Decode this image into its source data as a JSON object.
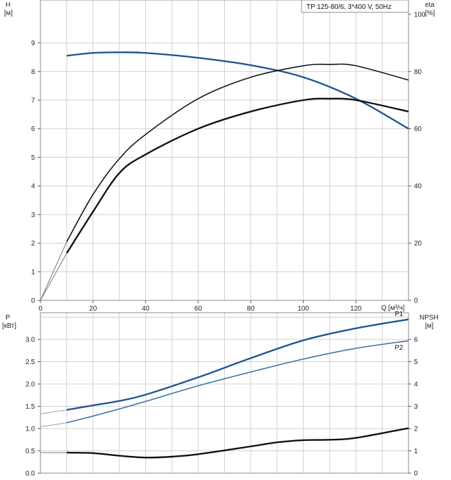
{
  "colors": {
    "blue": "#1f5591",
    "blue_light": "#3b6fa8",
    "black": "#111111",
    "grid": "#d0d0d0"
  },
  "chart_data": [
    {
      "type": "line",
      "title": "TP 125-80/6, 3*400 V, 50Hz",
      "xlabel": "Q [м³/ч]",
      "ylabel": "H [м]",
      "ylabel_top": "H",
      "ylabel_unit": "[м]",
      "y2label_top": "eta",
      "y2label_unit": "[%]",
      "xlim": [
        0,
        140
      ],
      "ylim": [
        0,
        10.5
      ],
      "y2lim": [
        0,
        105
      ],
      "xticks": [
        0,
        20,
        40,
        60,
        80,
        100,
        120
      ],
      "yticks": [
        0,
        1,
        2,
        3,
        4,
        5,
        6,
        7,
        8,
        9
      ],
      "y2ticks": [
        0,
        20,
        40,
        60,
        80,
        100
      ],
      "series": [
        {
          "name": "H",
          "axis": "left",
          "color": "#1f5591",
          "thin_x": [
            0,
            10
          ],
          "x": [
            10,
            20,
            30,
            40,
            60,
            80,
            100,
            120,
            140
          ],
          "y": [
            8.55,
            8.65,
            8.67,
            8.65,
            8.48,
            8.22,
            7.8,
            7.05,
            6.0
          ]
        },
        {
          "name": "eta",
          "axis": "right",
          "color": "#111111",
          "thin_x": [
            0,
            10
          ],
          "x": [
            0,
            10,
            20,
            30,
            40,
            60,
            80,
            100,
            110,
            120,
            140
          ],
          "y": [
            0,
            20.5,
            37,
            49.5,
            58,
            70.5,
            78,
            82,
            82.5,
            82,
            77
          ]
        },
        {
          "name": "eta_hydraulic",
          "axis": "right",
          "color": "#111111",
          "thin_x": [
            0,
            10
          ],
          "x": [
            0,
            10,
            20,
            30,
            40,
            60,
            80,
            100,
            110,
            120,
            140
          ],
          "y": [
            0,
            16.5,
            31,
            44.5,
            51,
            60,
            66,
            70,
            70.5,
            70,
            66
          ]
        }
      ]
    },
    {
      "type": "line",
      "xlabel": "",
      "ylabel": "P [кВт]",
      "ylabel_top": "P",
      "ylabel_unit": "[кВт]",
      "y2label_top": "NPSH",
      "y2label_unit": "[м]",
      "xlim": [
        0,
        140
      ],
      "ylim": [
        0,
        3.6
      ],
      "y2lim": [
        0,
        7.2
      ],
      "yticks": [
        0.0,
        0.5,
        1.0,
        1.5,
        2.0,
        2.5,
        3.0
      ],
      "ytick_labels": [
        "0.0",
        "0.5",
        "1.0",
        "1.5",
        "2.0",
        "2.5",
        "3.0"
      ],
      "y2ticks": [
        0,
        1,
        2,
        3,
        4,
        5,
        6
      ],
      "series": [
        {
          "name": "P1",
          "label": "P1",
          "axis": "left",
          "color": "#1f5591",
          "thin_x": [
            0,
            10
          ],
          "x": [
            0,
            10,
            20,
            30,
            40,
            60,
            80,
            100,
            120,
            140
          ],
          "y": [
            1.33,
            1.42,
            1.52,
            1.62,
            1.76,
            2.15,
            2.58,
            2.98,
            3.25,
            3.45
          ]
        },
        {
          "name": "P2",
          "label": "P2",
          "axis": "left",
          "color": "#3b6fa8",
          "thin_x": [
            0,
            10
          ],
          "x": [
            0,
            10,
            20,
            30,
            40,
            60,
            80,
            100,
            120,
            140
          ],
          "y": [
            1.04,
            1.13,
            1.28,
            1.44,
            1.61,
            1.96,
            2.27,
            2.56,
            2.8,
            2.97
          ]
        },
        {
          "name": "NPSH",
          "axis": "right",
          "color": "#111111",
          "thin_x": [
            0,
            10
          ],
          "x": [
            0,
            10,
            20,
            30,
            40,
            50,
            60,
            80,
            90,
            100,
            110,
            120,
            140
          ],
          "y": [
            0.92,
            0.92,
            0.9,
            0.78,
            0.7,
            0.74,
            0.85,
            1.2,
            1.38,
            1.48,
            1.5,
            1.58,
            2.02
          ]
        }
      ]
    }
  ]
}
